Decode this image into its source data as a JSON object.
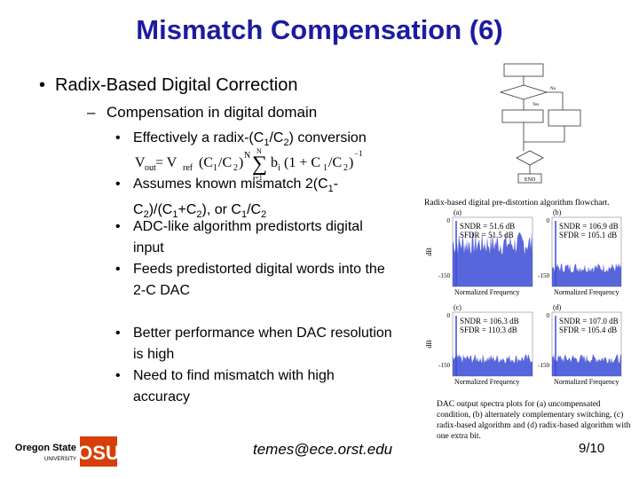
{
  "header": {
    "title": "Mismatch Compensation (6)"
  },
  "body": {
    "bullet": "Radix-Based Digital Correction",
    "sub_bullet": "Compensation in digital domain",
    "items": [
      [
        "Effectively a radix-(C",
        "1",
        "/C",
        "2",
        ") conversion"
      ],
      [
        "Assumes known mismatch 2(C",
        "1",
        "-C",
        "2",
        ")/(C",
        "1",
        "+C",
        "2",
        "), or C",
        "1",
        "/C",
        "2"
      ],
      [
        "ADC-like algorithm predistorts digital input"
      ],
      [
        "Feeds predistorted digital words into the 2-C DAC"
      ],
      [
        "Better performance when DAC resolution is high"
      ],
      [
        "Need to find mismatch with high accuracy"
      ]
    ],
    "formula": [
      "V",
      "out",
      "= V",
      "ref",
      "(C",
      "1",
      "/C",
      "2",
      ")",
      "N",
      "∑",
      "N",
      "i=1",
      "b",
      "i",
      "(1 + C",
      "1",
      "/C",
      "2",
      ")",
      "−1"
    ]
  },
  "figures": {
    "flowchart": {
      "end": "END",
      "yes": "Yes",
      "no": "No",
      "caption": "Radix-based digital pre-distortion algorithm flowchart."
    },
    "spectra": {
      "axis": {
        "ylabel": "dB",
        "ytop": "0",
        "ybottom": "-150",
        "xlabel": "Normalized Frequency"
      },
      "panels": [
        {
          "label": "(a)",
          "sndr": "SNDR = 51.6 dB",
          "sfdr": "SFDR = 51.5 dB"
        },
        {
          "label": "(b)",
          "sndr": "SNDR = 106.9 dB",
          "sfdr": "SFDR = 105.1 dB"
        },
        {
          "label": "(c)",
          "sndr": "SNDR = 106.3 dB",
          "sfdr": "SFDR = 110.3 dB"
        },
        {
          "label": "(d)",
          "sndr": "SNDR = 107.0 dB",
          "sfdr": "SFDR = 105.4 dB"
        }
      ],
      "caption": "DAC output spectra plots for (a) uncompensated condition, (b) alternately complementary switching, (c) radix-based algorithm and (d) radix-based algorithm with one extra bit."
    }
  },
  "footer": {
    "logo_name": "Oregon State",
    "logo_sub": "UNIVERSITY",
    "logo_mark": "OSU",
    "email": "temes@ece.orst.edu",
    "page": "9/10"
  }
}
